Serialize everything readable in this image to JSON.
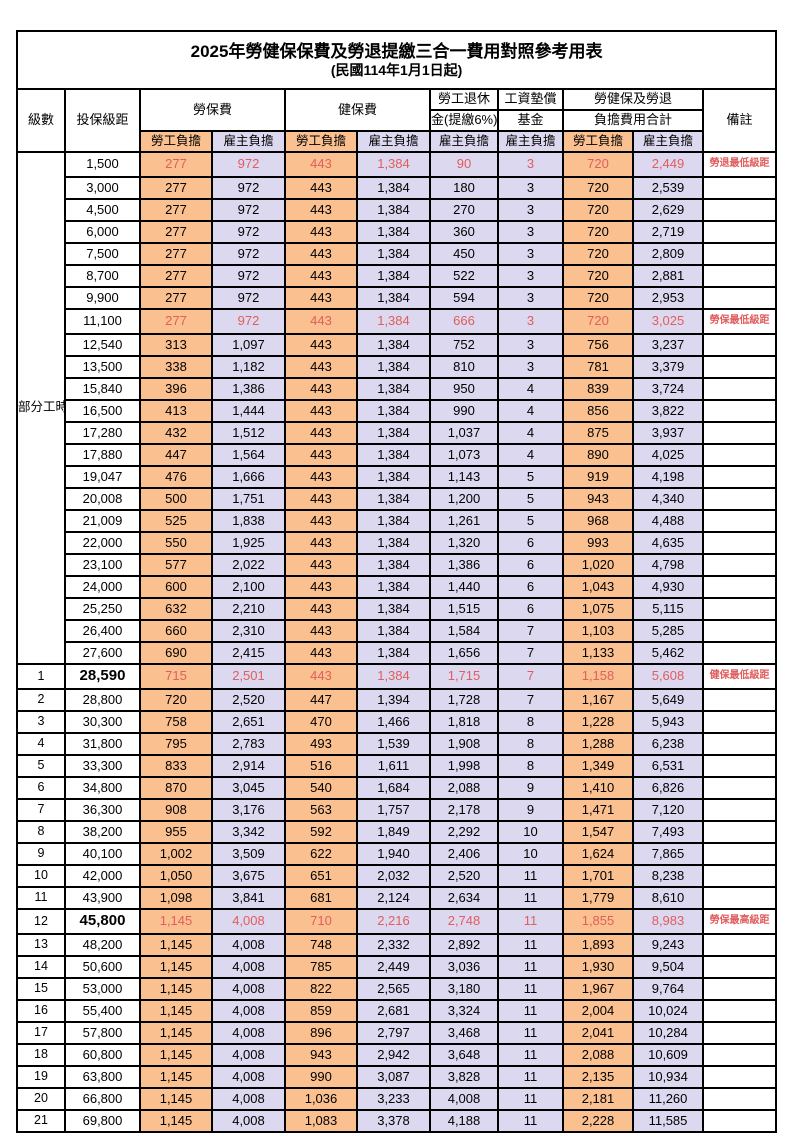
{
  "title": "2025年勞健保保費及勞退提繳三合一費用對照參考用表",
  "subtitle": "(民國114年1月1日起)",
  "header": {
    "level": "級數",
    "bracket": "投保級距",
    "labor_insurance": "勞保費",
    "health_insurance": "健保費",
    "pension_top": "勞工退休",
    "pension_bottom": "金(提繳6%)",
    "wage_fund_top": "工資墊償",
    "wage_fund_bottom": "基金",
    "total_top": "勞健保及勞退",
    "total_bottom": "負擔費用合計",
    "remark": "備註",
    "employee": "勞工負擔",
    "employer": "雇主負擔"
  },
  "part_time_label": "部分工時",
  "part_time_rowspan": 23,
  "colors": {
    "employee_bg": "#fac090",
    "employer_bg": "#dcd8ef",
    "highlight_text": "#e25d5d"
  },
  "row_columns": [
    "level",
    "bracket",
    "labor_employee",
    "labor_employer",
    "health_employee",
    "health_employer",
    "pension_employer",
    "wage_fund_employer",
    "total_employee",
    "total_employer",
    "remark"
  ],
  "red_row_indexes": [
    0,
    7,
    23,
    34
  ],
  "bold_bracket_indexes": [
    23,
    34
  ],
  "rows": [
    [
      "",
      "1,500",
      "277",
      "972",
      "443",
      "1,384",
      "90",
      "3",
      "720",
      "2,449",
      "勞退最低級距"
    ],
    [
      "",
      "3,000",
      "277",
      "972",
      "443",
      "1,384",
      "180",
      "3",
      "720",
      "2,539",
      ""
    ],
    [
      "",
      "4,500",
      "277",
      "972",
      "443",
      "1,384",
      "270",
      "3",
      "720",
      "2,629",
      ""
    ],
    [
      "",
      "6,000",
      "277",
      "972",
      "443",
      "1,384",
      "360",
      "3",
      "720",
      "2,719",
      ""
    ],
    [
      "",
      "7,500",
      "277",
      "972",
      "443",
      "1,384",
      "450",
      "3",
      "720",
      "2,809",
      ""
    ],
    [
      "",
      "8,700",
      "277",
      "972",
      "443",
      "1,384",
      "522",
      "3",
      "720",
      "2,881",
      ""
    ],
    [
      "",
      "9,900",
      "277",
      "972",
      "443",
      "1,384",
      "594",
      "3",
      "720",
      "2,953",
      ""
    ],
    [
      "",
      "11,100",
      "277",
      "972",
      "443",
      "1,384",
      "666",
      "3",
      "720",
      "3,025",
      "勞保最低級距"
    ],
    [
      "",
      "12,540",
      "313",
      "1,097",
      "443",
      "1,384",
      "752",
      "3",
      "756",
      "3,237",
      ""
    ],
    [
      "",
      "13,500",
      "338",
      "1,182",
      "443",
      "1,384",
      "810",
      "3",
      "781",
      "3,379",
      ""
    ],
    [
      "",
      "15,840",
      "396",
      "1,386",
      "443",
      "1,384",
      "950",
      "4",
      "839",
      "3,724",
      ""
    ],
    [
      "",
      "16,500",
      "413",
      "1,444",
      "443",
      "1,384",
      "990",
      "4",
      "856",
      "3,822",
      ""
    ],
    [
      "",
      "17,280",
      "432",
      "1,512",
      "443",
      "1,384",
      "1,037",
      "4",
      "875",
      "3,937",
      ""
    ],
    [
      "",
      "17,880",
      "447",
      "1,564",
      "443",
      "1,384",
      "1,073",
      "4",
      "890",
      "4,025",
      ""
    ],
    [
      "",
      "19,047",
      "476",
      "1,666",
      "443",
      "1,384",
      "1,143",
      "5",
      "919",
      "4,198",
      ""
    ],
    [
      "",
      "20,008",
      "500",
      "1,751",
      "443",
      "1,384",
      "1,200",
      "5",
      "943",
      "4,340",
      ""
    ],
    [
      "",
      "21,009",
      "525",
      "1,838",
      "443",
      "1,384",
      "1,261",
      "5",
      "968",
      "4,488",
      ""
    ],
    [
      "",
      "22,000",
      "550",
      "1,925",
      "443",
      "1,384",
      "1,320",
      "6",
      "993",
      "4,635",
      ""
    ],
    [
      "",
      "23,100",
      "577",
      "2,022",
      "443",
      "1,384",
      "1,386",
      "6",
      "1,020",
      "4,798",
      ""
    ],
    [
      "",
      "24,000",
      "600",
      "2,100",
      "443",
      "1,384",
      "1,440",
      "6",
      "1,043",
      "4,930",
      ""
    ],
    [
      "",
      "25,250",
      "632",
      "2,210",
      "443",
      "1,384",
      "1,515",
      "6",
      "1,075",
      "5,115",
      ""
    ],
    [
      "",
      "26,400",
      "660",
      "2,310",
      "443",
      "1,384",
      "1,584",
      "7",
      "1,103",
      "5,285",
      ""
    ],
    [
      "",
      "27,600",
      "690",
      "2,415",
      "443",
      "1,384",
      "1,656",
      "7",
      "1,133",
      "5,462",
      ""
    ],
    [
      "1",
      "28,590",
      "715",
      "2,501",
      "443",
      "1,384",
      "1,715",
      "7",
      "1,158",
      "5,608",
      "健保最低級距"
    ],
    [
      "2",
      "28,800",
      "720",
      "2,520",
      "447",
      "1,394",
      "1,728",
      "7",
      "1,167",
      "5,649",
      ""
    ],
    [
      "3",
      "30,300",
      "758",
      "2,651",
      "470",
      "1,466",
      "1,818",
      "8",
      "1,228",
      "5,943",
      ""
    ],
    [
      "4",
      "31,800",
      "795",
      "2,783",
      "493",
      "1,539",
      "1,908",
      "8",
      "1,288",
      "6,238",
      ""
    ],
    [
      "5",
      "33,300",
      "833",
      "2,914",
      "516",
      "1,611",
      "1,998",
      "8",
      "1,349",
      "6,531",
      ""
    ],
    [
      "6",
      "34,800",
      "870",
      "3,045",
      "540",
      "1,684",
      "2,088",
      "9",
      "1,410",
      "6,826",
      ""
    ],
    [
      "7",
      "36,300",
      "908",
      "3,176",
      "563",
      "1,757",
      "2,178",
      "9",
      "1,471",
      "7,120",
      ""
    ],
    [
      "8",
      "38,200",
      "955",
      "3,342",
      "592",
      "1,849",
      "2,292",
      "10",
      "1,547",
      "7,493",
      ""
    ],
    [
      "9",
      "40,100",
      "1,002",
      "3,509",
      "622",
      "1,940",
      "2,406",
      "10",
      "1,624",
      "7,865",
      ""
    ],
    [
      "10",
      "42,000",
      "1,050",
      "3,675",
      "651",
      "2,032",
      "2,520",
      "11",
      "1,701",
      "8,238",
      ""
    ],
    [
      "11",
      "43,900",
      "1,098",
      "3,841",
      "681",
      "2,124",
      "2,634",
      "11",
      "1,779",
      "8,610",
      ""
    ],
    [
      "12",
      "45,800",
      "1,145",
      "4,008",
      "710",
      "2,216",
      "2,748",
      "11",
      "1,855",
      "8,983",
      "勞保最高級距"
    ],
    [
      "13",
      "48,200",
      "1,145",
      "4,008",
      "748",
      "2,332",
      "2,892",
      "11",
      "1,893",
      "9,243",
      ""
    ],
    [
      "14",
      "50,600",
      "1,145",
      "4,008",
      "785",
      "2,449",
      "3,036",
      "11",
      "1,930",
      "9,504",
      ""
    ],
    [
      "15",
      "53,000",
      "1,145",
      "4,008",
      "822",
      "2,565",
      "3,180",
      "11",
      "1,967",
      "9,764",
      ""
    ],
    [
      "16",
      "55,400",
      "1,145",
      "4,008",
      "859",
      "2,681",
      "3,324",
      "11",
      "2,004",
      "10,024",
      ""
    ],
    [
      "17",
      "57,800",
      "1,145",
      "4,008",
      "896",
      "2,797",
      "3,468",
      "11",
      "2,041",
      "10,284",
      ""
    ],
    [
      "18",
      "60,800",
      "1,145",
      "4,008",
      "943",
      "2,942",
      "3,648",
      "11",
      "2,088",
      "10,609",
      ""
    ],
    [
      "19",
      "63,800",
      "1,145",
      "4,008",
      "990",
      "3,087",
      "3,828",
      "11",
      "2,135",
      "10,934",
      ""
    ],
    [
      "20",
      "66,800",
      "1,145",
      "4,008",
      "1,036",
      "3,233",
      "4,008",
      "11",
      "2,181",
      "11,260",
      ""
    ],
    [
      "21",
      "69,800",
      "1,145",
      "4,008",
      "1,083",
      "3,378",
      "4,188",
      "11",
      "2,228",
      "11,585",
      ""
    ]
  ]
}
